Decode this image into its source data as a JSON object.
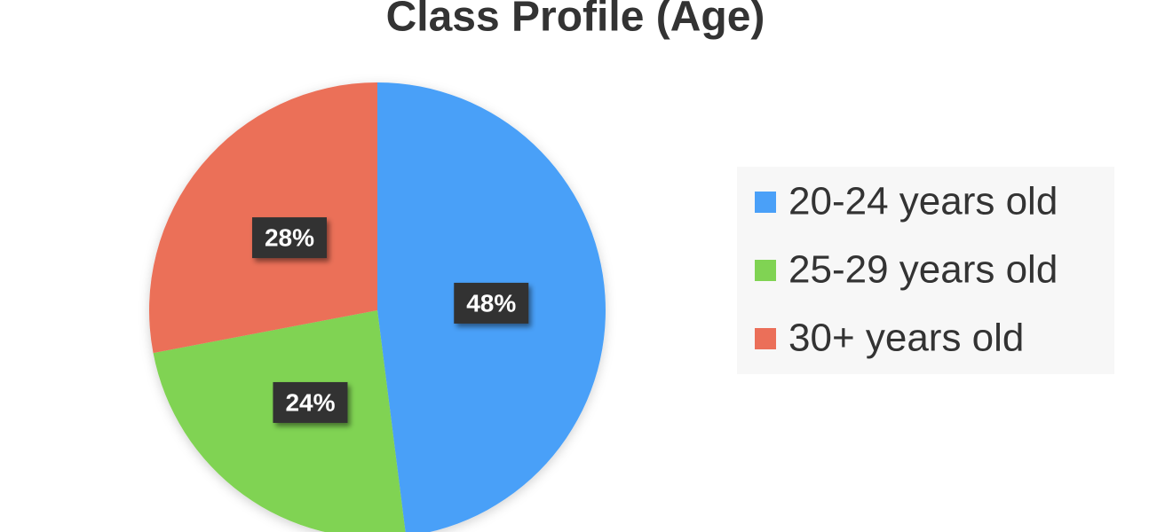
{
  "chart_data": {
    "type": "pie",
    "title": "Class Profile (Age)",
    "categories": [
      "20-24 years old",
      "25-29 years old",
      "30+ years old"
    ],
    "values": [
      48,
      24,
      28
    ],
    "value_labels": [
      "48%",
      "24%",
      "28%"
    ],
    "colors": [
      "#4aa0f8",
      "#80d353",
      "#eb6f59"
    ],
    "legend": "right"
  }
}
